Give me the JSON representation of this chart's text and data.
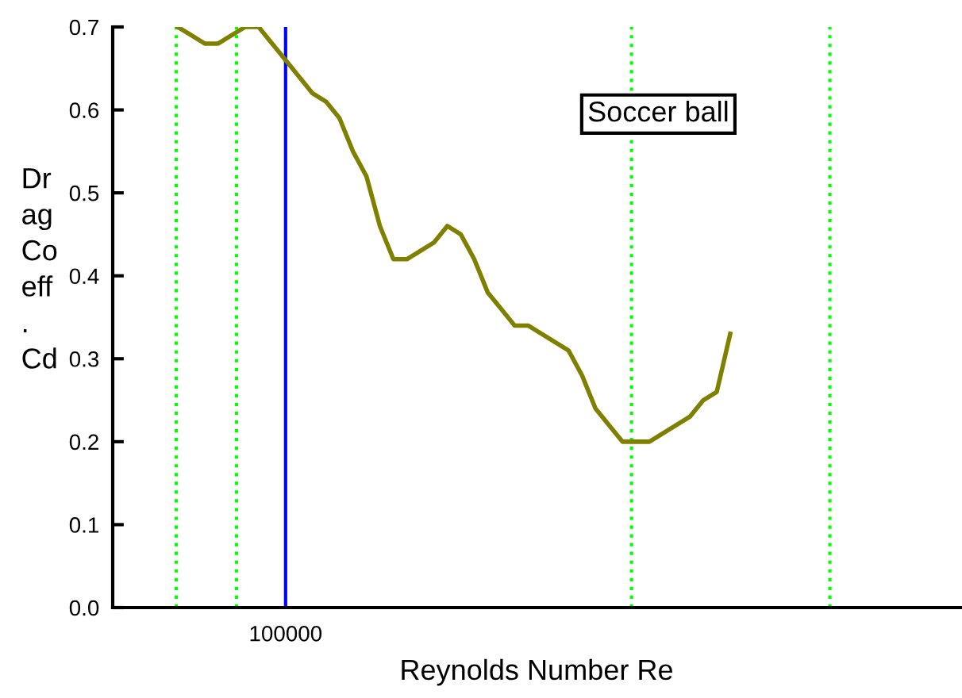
{
  "chart_data": {
    "type": "line",
    "xlabel": "Reynolds Number Re",
    "ylabel": "Dr\nag\nCo\neff\n.\nCd",
    "annotations": [
      "Soccer ball"
    ],
    "categories": [
      null,
      null,
      null,
      null,
      null,
      null,
      null,
      null,
      "100000",
      null,
      null,
      null,
      null,
      null,
      null,
      null,
      null,
      null,
      null,
      null,
      null,
      null,
      null,
      null,
      null,
      null,
      null,
      null,
      null,
      null,
      null,
      null,
      null,
      null,
      null,
      null,
      null,
      null,
      null,
      null,
      null,
      null
    ],
    "series": [
      {
        "color": "#808000",
        "values": [
          0.7,
          0.69,
          0.68,
          0.68,
          0.69,
          0.7,
          0.7,
          0.68,
          0.66,
          0.64,
          0.62,
          0.61,
          0.59,
          0.55,
          0.52,
          0.46,
          0.42,
          0.42,
          0.43,
          0.44,
          0.46,
          0.45,
          0.42,
          0.38,
          0.36,
          0.34,
          0.34,
          0.33,
          0.32,
          0.31,
          0.28,
          0.24,
          0.22,
          0.2,
          0.2,
          0.2,
          0.21,
          0.22,
          0.23,
          0.25,
          0.26,
          0.33
        ]
      }
    ],
    "ylim": [
      0,
      0.7
    ],
    "yticks": [
      {
        "value": 0,
        "label": "0.0"
      },
      {
        "value": 0.1,
        "label": "0.1"
      },
      {
        "value": 0.2,
        "label": "0.2"
      },
      {
        "value": 0.3,
        "label": "0.3"
      },
      {
        "value": 0.4,
        "label": "0.4"
      },
      {
        "value": 0.5,
        "label": "0.5"
      },
      {
        "value": 0.6,
        "label": "0.6"
      },
      {
        "value": 0.7,
        "label": "0.7"
      }
    ],
    "ref_lines": [
      {
        "axis": "x",
        "value": "100000",
        "color": "#0000ff",
        "line_style": "solid"
      }
    ],
    "grid": false,
    "legend": false,
    "marker": "none",
    "line_style": "solid"
  }
}
